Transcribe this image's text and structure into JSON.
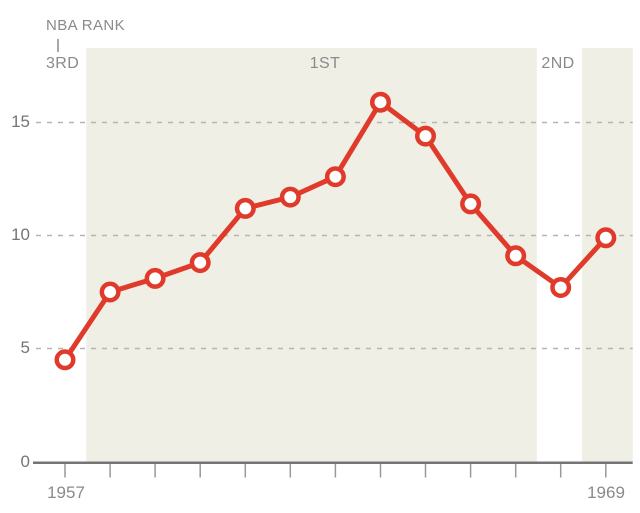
{
  "colors": {
    "line": "#e03a2b",
    "marker_fill": "#ffffff",
    "band": "#f0efe6",
    "grid": "#b5b5b1",
    "axis": "#757575",
    "tick": "#999999",
    "label_gray": "#8a8a8a"
  },
  "chart_data": {
    "type": "line",
    "axis_title": "NBA RANK",
    "x": [
      1957,
      1958,
      1959,
      1960,
      1961,
      1962,
      1963,
      1964,
      1965,
      1966,
      1967,
      1968,
      1969
    ],
    "values": [
      4.5,
      7.5,
      8.1,
      8.8,
      11.2,
      11.7,
      12.6,
      15.9,
      14.4,
      11.4,
      9.1,
      7.7,
      9.9
    ],
    "y_ticks": [
      0,
      5,
      10,
      15
    ],
    "y_tick_labels": [
      "0",
      "5",
      "10",
      "15"
    ],
    "x_tick_labels": {
      "first": "1957",
      "last": "1969"
    },
    "ylim": [
      0,
      17.7
    ],
    "grid": "dashed-horizontal",
    "legend": "none",
    "bands": [
      {
        "label": "3RD",
        "shaded": false,
        "from": 1956.35,
        "to": 1957.47
      },
      {
        "label": "1ST",
        "shaded": true,
        "from": 1957.47,
        "to": 1967.47
      },
      {
        "label": "2ND",
        "shaded": false,
        "from": 1967.47,
        "to": 1968.47
      },
      {
        "label": "",
        "shaded": true,
        "from": 1968.47,
        "to": 1969.6
      }
    ]
  }
}
